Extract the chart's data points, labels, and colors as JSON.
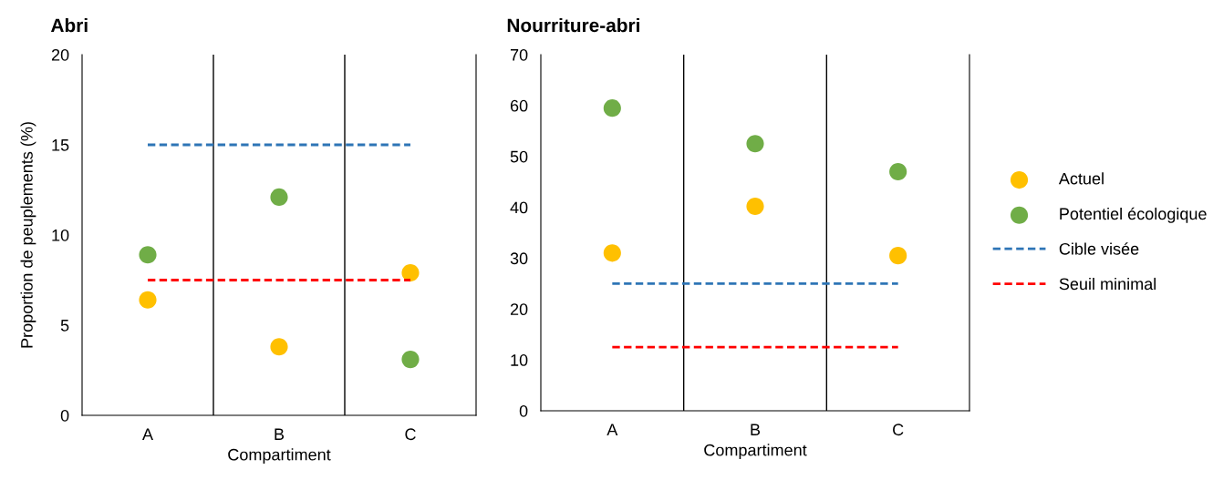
{
  "chart_data": [
    {
      "type": "scatter",
      "title": "Abri",
      "xlabel": "Compartiment",
      "ylabel": "Proportion de peuplements (%)",
      "categories": [
        "A",
        "B",
        "C"
      ],
      "ylim": [
        0,
        20
      ],
      "yticks": [
        0,
        5,
        10,
        15,
        20
      ],
      "grid": "x",
      "legend": false,
      "series": [
        {
          "marker": "circle",
          "color": "#ffc000",
          "values": [
            6.4,
            3.8,
            7.9
          ]
        },
        {
          "marker": "circle",
          "color": "#70ad47",
          "values": [
            8.9,
            12.1,
            3.1
          ]
        },
        {
          "type": "line",
          "marker": "none",
          "line_style": "dashed",
          "color": "#2e75b6",
          "values": [
            15,
            15,
            15
          ]
        },
        {
          "type": "line",
          "marker": "none",
          "line_style": "dashed",
          "color": "#ff0000",
          "values": [
            7.5,
            7.5,
            7.5
          ]
        }
      ]
    },
    {
      "type": "scatter",
      "title": "Nourriture-abri",
      "xlabel": "Compartiment",
      "categories": [
        "A",
        "B",
        "C"
      ],
      "ylim": [
        0,
        70
      ],
      "yticks": [
        0,
        10,
        20,
        30,
        40,
        50,
        60,
        70
      ],
      "grid": "x",
      "legend": "right",
      "series": [
        {
          "name": "Actuel",
          "marker": "circle",
          "color": "#ffc000",
          "values": [
            31,
            40.2,
            30.5
          ]
        },
        {
          "name": "Potentiel écologique",
          "marker": "circle",
          "color": "#70ad47",
          "values": [
            59.5,
            52.5,
            47
          ]
        },
        {
          "name": "Cible visée",
          "type": "line",
          "marker": "none",
          "line_style": "dashed",
          "color": "#2e75b6",
          "values": [
            25,
            25,
            25
          ]
        },
        {
          "name": "Seuil minimal",
          "type": "line",
          "marker": "none",
          "line_style": "dashed",
          "color": "#ff0000",
          "values": [
            12.5,
            12.5,
            12.5
          ]
        }
      ]
    }
  ]
}
